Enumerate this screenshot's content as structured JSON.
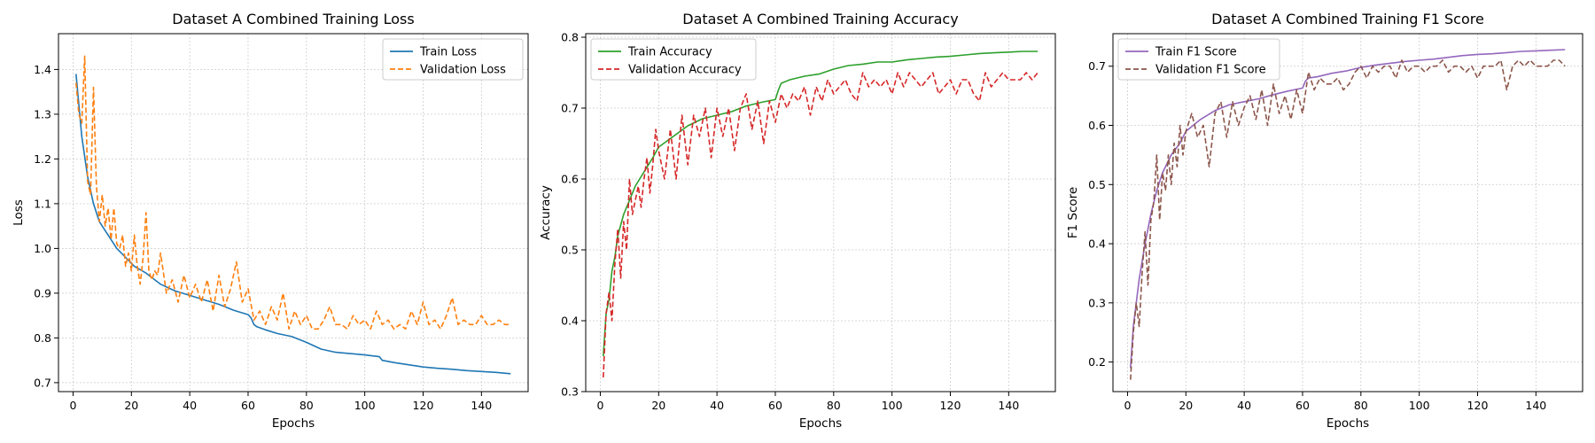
{
  "colors": {
    "train_loss": "#1f77b4",
    "val_loss": "#ff7f0e",
    "train_acc": "#2ca02c",
    "val_acc": "#d62728",
    "train_f1": "#9467bd",
    "val_f1": "#8c564b",
    "grid": "#cccccc"
  },
  "chart_data": [
    {
      "type": "line",
      "title": "Dataset A Combined Training Loss",
      "xlabel": "Epochs",
      "ylabel": "Loss",
      "xlim": [
        -5,
        156
      ],
      "ylim": [
        0.68,
        1.48
      ],
      "xticks": [
        0,
        20,
        40,
        60,
        80,
        100,
        120,
        140
      ],
      "yticks": [
        0.7,
        0.8,
        0.9,
        1.0,
        1.1,
        1.2,
        1.3,
        1.4
      ],
      "ytick_labels": [
        "0.7",
        "0.8",
        "0.9",
        "1.0",
        "1.1",
        "1.2",
        "1.3",
        "1.4"
      ],
      "grid": true,
      "legend_position": "top-right",
      "series": [
        {
          "name": "Train Loss",
          "color_key": "train_loss",
          "style": "solid",
          "x": [
            1,
            3,
            5,
            7,
            9,
            12,
            15,
            18,
            21,
            25,
            30,
            35,
            40,
            45,
            50,
            55,
            60,
            61,
            62,
            63,
            66,
            70,
            75,
            80,
            85,
            90,
            95,
            100,
            105,
            106,
            110,
            115,
            120,
            125,
            130,
            135,
            140,
            145,
            150
          ],
          "y": [
            1.39,
            1.25,
            1.16,
            1.1,
            1.06,
            1.03,
            1.0,
            0.98,
            0.96,
            0.945,
            0.92,
            0.905,
            0.895,
            0.885,
            0.875,
            0.862,
            0.852,
            0.845,
            0.83,
            0.825,
            0.818,
            0.81,
            0.803,
            0.79,
            0.775,
            0.768,
            0.765,
            0.762,
            0.758,
            0.75,
            0.745,
            0.74,
            0.735,
            0.732,
            0.73,
            0.727,
            0.725,
            0.723,
            0.72
          ]
        },
        {
          "name": "Validation Loss",
          "color_key": "val_loss",
          "style": "dashed",
          "x": [
            1,
            2,
            3,
            4,
            5,
            6,
            7,
            8,
            9,
            10,
            11,
            12,
            13,
            14,
            15,
            16,
            17,
            18,
            19,
            20,
            21,
            22,
            23,
            24,
            25,
            26,
            27,
            28,
            29,
            30,
            32,
            34,
            36,
            38,
            40,
            42,
            44,
            46,
            48,
            50,
            52,
            54,
            56,
            58,
            60,
            62,
            64,
            66,
            68,
            70,
            72,
            74,
            76,
            78,
            80,
            82,
            84,
            86,
            88,
            90,
            92,
            94,
            96,
            98,
            100,
            102,
            104,
            106,
            108,
            110,
            112,
            114,
            116,
            118,
            120,
            122,
            124,
            126,
            128,
            130,
            132,
            134,
            136,
            138,
            140,
            142,
            144,
            146,
            148,
            150
          ],
          "y": [
            1.37,
            1.3,
            1.28,
            1.43,
            1.15,
            1.12,
            1.36,
            1.14,
            1.06,
            1.12,
            1.05,
            1.09,
            1.02,
            1.09,
            1.01,
            1.0,
            1.03,
            0.96,
            0.99,
            0.95,
            1.03,
            0.96,
            0.92,
            0.98,
            1.08,
            0.95,
            0.93,
            0.95,
            0.94,
            0.99,
            0.9,
            0.93,
            0.88,
            0.94,
            0.89,
            0.92,
            0.88,
            0.93,
            0.86,
            0.94,
            0.87,
            0.91,
            0.97,
            0.88,
            0.91,
            0.84,
            0.86,
            0.83,
            0.87,
            0.84,
            0.9,
            0.82,
            0.86,
            0.83,
            0.85,
            0.82,
            0.82,
            0.84,
            0.87,
            0.83,
            0.83,
            0.82,
            0.85,
            0.83,
            0.84,
            0.82,
            0.86,
            0.83,
            0.84,
            0.82,
            0.83,
            0.82,
            0.86,
            0.83,
            0.88,
            0.83,
            0.84,
            0.82,
            0.85,
            0.89,
            0.83,
            0.84,
            0.83,
            0.83,
            0.85,
            0.83,
            0.83,
            0.84,
            0.83,
            0.83
          ]
        }
      ]
    },
    {
      "type": "line",
      "title": "Dataset A Combined Training Accuracy",
      "xlabel": "Epochs",
      "ylabel": "Accuracy",
      "xlim": [
        -5,
        156
      ],
      "ylim": [
        0.3,
        0.805
      ],
      "xticks": [
        0,
        20,
        40,
        60,
        80,
        100,
        120,
        140
      ],
      "yticks": [
        0.3,
        0.4,
        0.5,
        0.6,
        0.7,
        0.8
      ],
      "ytick_labels": [
        "0.3",
        "0.4",
        "0.5",
        "0.6",
        "0.7",
        "0.8"
      ],
      "grid": true,
      "legend_position": "top-left",
      "series": [
        {
          "name": "Train Accuracy",
          "color_key": "train_acc",
          "style": "solid",
          "x": [
            1,
            2,
            3,
            4,
            5,
            6,
            8,
            10,
            12,
            15,
            18,
            20,
            25,
            30,
            35,
            40,
            45,
            50,
            55,
            60,
            61,
            62,
            65,
            70,
            75,
            80,
            85,
            90,
            95,
            100,
            105,
            110,
            115,
            120,
            125,
            130,
            135,
            140,
            145,
            150
          ],
          "y": [
            0.35,
            0.41,
            0.43,
            0.47,
            0.49,
            0.52,
            0.55,
            0.57,
            0.59,
            0.61,
            0.63,
            0.645,
            0.66,
            0.675,
            0.685,
            0.69,
            0.695,
            0.703,
            0.708,
            0.712,
            0.725,
            0.735,
            0.74,
            0.745,
            0.748,
            0.755,
            0.76,
            0.762,
            0.765,
            0.765,
            0.768,
            0.77,
            0.772,
            0.773,
            0.775,
            0.777,
            0.778,
            0.779,
            0.78,
            0.78
          ]
        },
        {
          "name": "Validation Accuracy",
          "color_key": "val_acc",
          "style": "dashed",
          "x": [
            1,
            2,
            3,
            4,
            5,
            6,
            7,
            8,
            9,
            10,
            11,
            12,
            13,
            14,
            15,
            16,
            17,
            18,
            19,
            20,
            22,
            24,
            26,
            28,
            30,
            32,
            34,
            36,
            38,
            40,
            42,
            44,
            46,
            48,
            50,
            52,
            54,
            56,
            58,
            60,
            62,
            64,
            66,
            68,
            70,
            72,
            74,
            76,
            78,
            80,
            82,
            84,
            86,
            88,
            90,
            92,
            94,
            96,
            98,
            100,
            102,
            104,
            106,
            108,
            110,
            112,
            114,
            116,
            118,
            120,
            122,
            124,
            126,
            128,
            130,
            132,
            134,
            136,
            138,
            140,
            142,
            144,
            146,
            148,
            150
          ],
          "y": [
            0.32,
            0.41,
            0.44,
            0.4,
            0.48,
            0.53,
            0.46,
            0.54,
            0.5,
            0.6,
            0.55,
            0.57,
            0.59,
            0.56,
            0.6,
            0.63,
            0.58,
            0.62,
            0.67,
            0.64,
            0.6,
            0.67,
            0.6,
            0.69,
            0.62,
            0.69,
            0.66,
            0.7,
            0.63,
            0.7,
            0.66,
            0.7,
            0.64,
            0.7,
            0.72,
            0.67,
            0.71,
            0.65,
            0.71,
            0.68,
            0.72,
            0.7,
            0.72,
            0.71,
            0.73,
            0.69,
            0.73,
            0.71,
            0.74,
            0.72,
            0.73,
            0.74,
            0.72,
            0.71,
            0.75,
            0.73,
            0.74,
            0.73,
            0.74,
            0.72,
            0.75,
            0.73,
            0.75,
            0.74,
            0.73,
            0.74,
            0.75,
            0.72,
            0.73,
            0.74,
            0.72,
            0.74,
            0.74,
            0.72,
            0.71,
            0.75,
            0.73,
            0.74,
            0.75,
            0.74,
            0.74,
            0.74,
            0.75,
            0.74,
            0.75
          ]
        }
      ]
    },
    {
      "type": "line",
      "title": "Dataset A Combined Training F1 Score",
      "xlabel": "Epochs",
      "ylabel": "F1 Score",
      "xlim": [
        -5,
        156
      ],
      "ylim": [
        0.15,
        0.755
      ],
      "xticks": [
        0,
        20,
        40,
        60,
        80,
        100,
        120,
        140
      ],
      "yticks": [
        0.2,
        0.3,
        0.4,
        0.5,
        0.6,
        0.7
      ],
      "ytick_labels": [
        "0.2",
        "0.3",
        "0.4",
        "0.5",
        "0.6",
        "0.7"
      ],
      "grid": true,
      "legend_position": "top-left",
      "series": [
        {
          "name": "Train F1 Score",
          "color_key": "train_f1",
          "style": "solid",
          "x": [
            1,
            2,
            3,
            4,
            5,
            6,
            8,
            10,
            12,
            15,
            18,
            20,
            25,
            30,
            35,
            40,
            45,
            50,
            55,
            60,
            61,
            62,
            65,
            70,
            75,
            80,
            85,
            90,
            95,
            100,
            105,
            110,
            115,
            120,
            125,
            130,
            135,
            140,
            145,
            150
          ],
          "y": [
            0.19,
            0.26,
            0.3,
            0.34,
            0.37,
            0.4,
            0.45,
            0.49,
            0.52,
            0.55,
            0.57,
            0.59,
            0.61,
            0.625,
            0.635,
            0.64,
            0.645,
            0.652,
            0.658,
            0.663,
            0.675,
            0.68,
            0.682,
            0.688,
            0.692,
            0.698,
            0.702,
            0.705,
            0.708,
            0.71,
            0.712,
            0.715,
            0.718,
            0.72,
            0.721,
            0.723,
            0.725,
            0.726,
            0.727,
            0.728
          ]
        },
        {
          "name": "Validation F1 Score",
          "color_key": "val_f1",
          "style": "dashed",
          "x": [
            1,
            2,
            3,
            4,
            5,
            6,
            7,
            8,
            9,
            10,
            11,
            12,
            13,
            14,
            15,
            16,
            17,
            18,
            19,
            20,
            22,
            24,
            26,
            28,
            30,
            32,
            34,
            36,
            38,
            40,
            42,
            44,
            46,
            48,
            50,
            52,
            54,
            56,
            58,
            60,
            62,
            64,
            66,
            68,
            70,
            72,
            74,
            76,
            78,
            80,
            82,
            84,
            86,
            88,
            90,
            92,
            94,
            96,
            98,
            100,
            102,
            104,
            106,
            108,
            110,
            112,
            114,
            116,
            118,
            120,
            122,
            124,
            126,
            128,
            130,
            132,
            134,
            136,
            138,
            140,
            142,
            144,
            146,
            148,
            150
          ],
          "y": [
            0.17,
            0.25,
            0.3,
            0.26,
            0.35,
            0.42,
            0.33,
            0.44,
            0.47,
            0.55,
            0.44,
            0.52,
            0.49,
            0.55,
            0.5,
            0.57,
            0.53,
            0.6,
            0.55,
            0.59,
            0.62,
            0.58,
            0.6,
            0.53,
            0.62,
            0.64,
            0.58,
            0.64,
            0.6,
            0.63,
            0.65,
            0.61,
            0.66,
            0.6,
            0.67,
            0.62,
            0.65,
            0.61,
            0.66,
            0.62,
            0.69,
            0.66,
            0.68,
            0.67,
            0.67,
            0.68,
            0.66,
            0.67,
            0.69,
            0.7,
            0.68,
            0.7,
            0.69,
            0.7,
            0.7,
            0.68,
            0.71,
            0.69,
            0.7,
            0.7,
            0.69,
            0.7,
            0.7,
            0.71,
            0.69,
            0.7,
            0.7,
            0.69,
            0.7,
            0.68,
            0.7,
            0.7,
            0.7,
            0.71,
            0.66,
            0.7,
            0.71,
            0.7,
            0.71,
            0.7,
            0.7,
            0.7,
            0.71,
            0.71,
            0.7
          ]
        }
      ]
    }
  ]
}
